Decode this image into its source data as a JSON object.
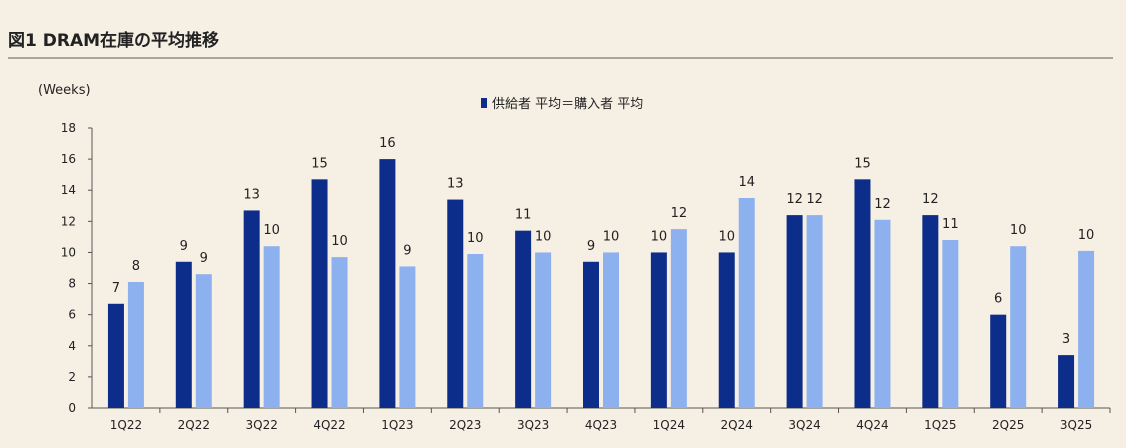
{
  "title": "図1 DRAM在庫の平均推移",
  "colors": {
    "supplier": "#0d2d8a",
    "buyer": "#8db1ef",
    "axis": "#555555",
    "background": "#f6efe4"
  },
  "chart_data": {
    "type": "bar",
    "ylabel": "(Weeks)",
    "ylim": [
      0,
      18
    ],
    "yticks": [
      0,
      2,
      4,
      6,
      8,
      10,
      12,
      14,
      16,
      18
    ],
    "grid": false,
    "legend_position": "top-center",
    "categories": [
      "1Q22",
      "2Q22",
      "3Q22",
      "4Q22",
      "1Q23",
      "2Q23",
      "3Q23",
      "4Q23",
      "1Q24",
      "2Q24",
      "3Q24",
      "4Q24",
      "1Q25",
      "2Q25",
      "3Q25"
    ],
    "legend_label": "供給者 平均＝購入者 平均",
    "series": [
      {
        "values": [
          6.7,
          9.4,
          12.7,
          14.7,
          16.0,
          13.4,
          11.4,
          9.4,
          10.0,
          10.0,
          12.4,
          14.7,
          12.4,
          6.0,
          3.4
        ],
        "labels": [
          "7",
          "9",
          "13",
          "15",
          "16",
          "13",
          "11",
          "9",
          "10",
          "10",
          "12",
          "15",
          "12",
          "6",
          "3"
        ]
      },
      {
        "values": [
          8.1,
          8.6,
          10.4,
          9.7,
          9.1,
          9.9,
          10.0,
          10.0,
          11.5,
          13.5,
          12.4,
          12.1,
          10.8,
          10.4,
          10.1
        ],
        "labels": [
          "8",
          "9",
          "10",
          "10",
          "9",
          "10",
          "10",
          "10",
          "12",
          "14",
          "12",
          "12",
          "11",
          "10",
          "10"
        ]
      }
    ]
  }
}
